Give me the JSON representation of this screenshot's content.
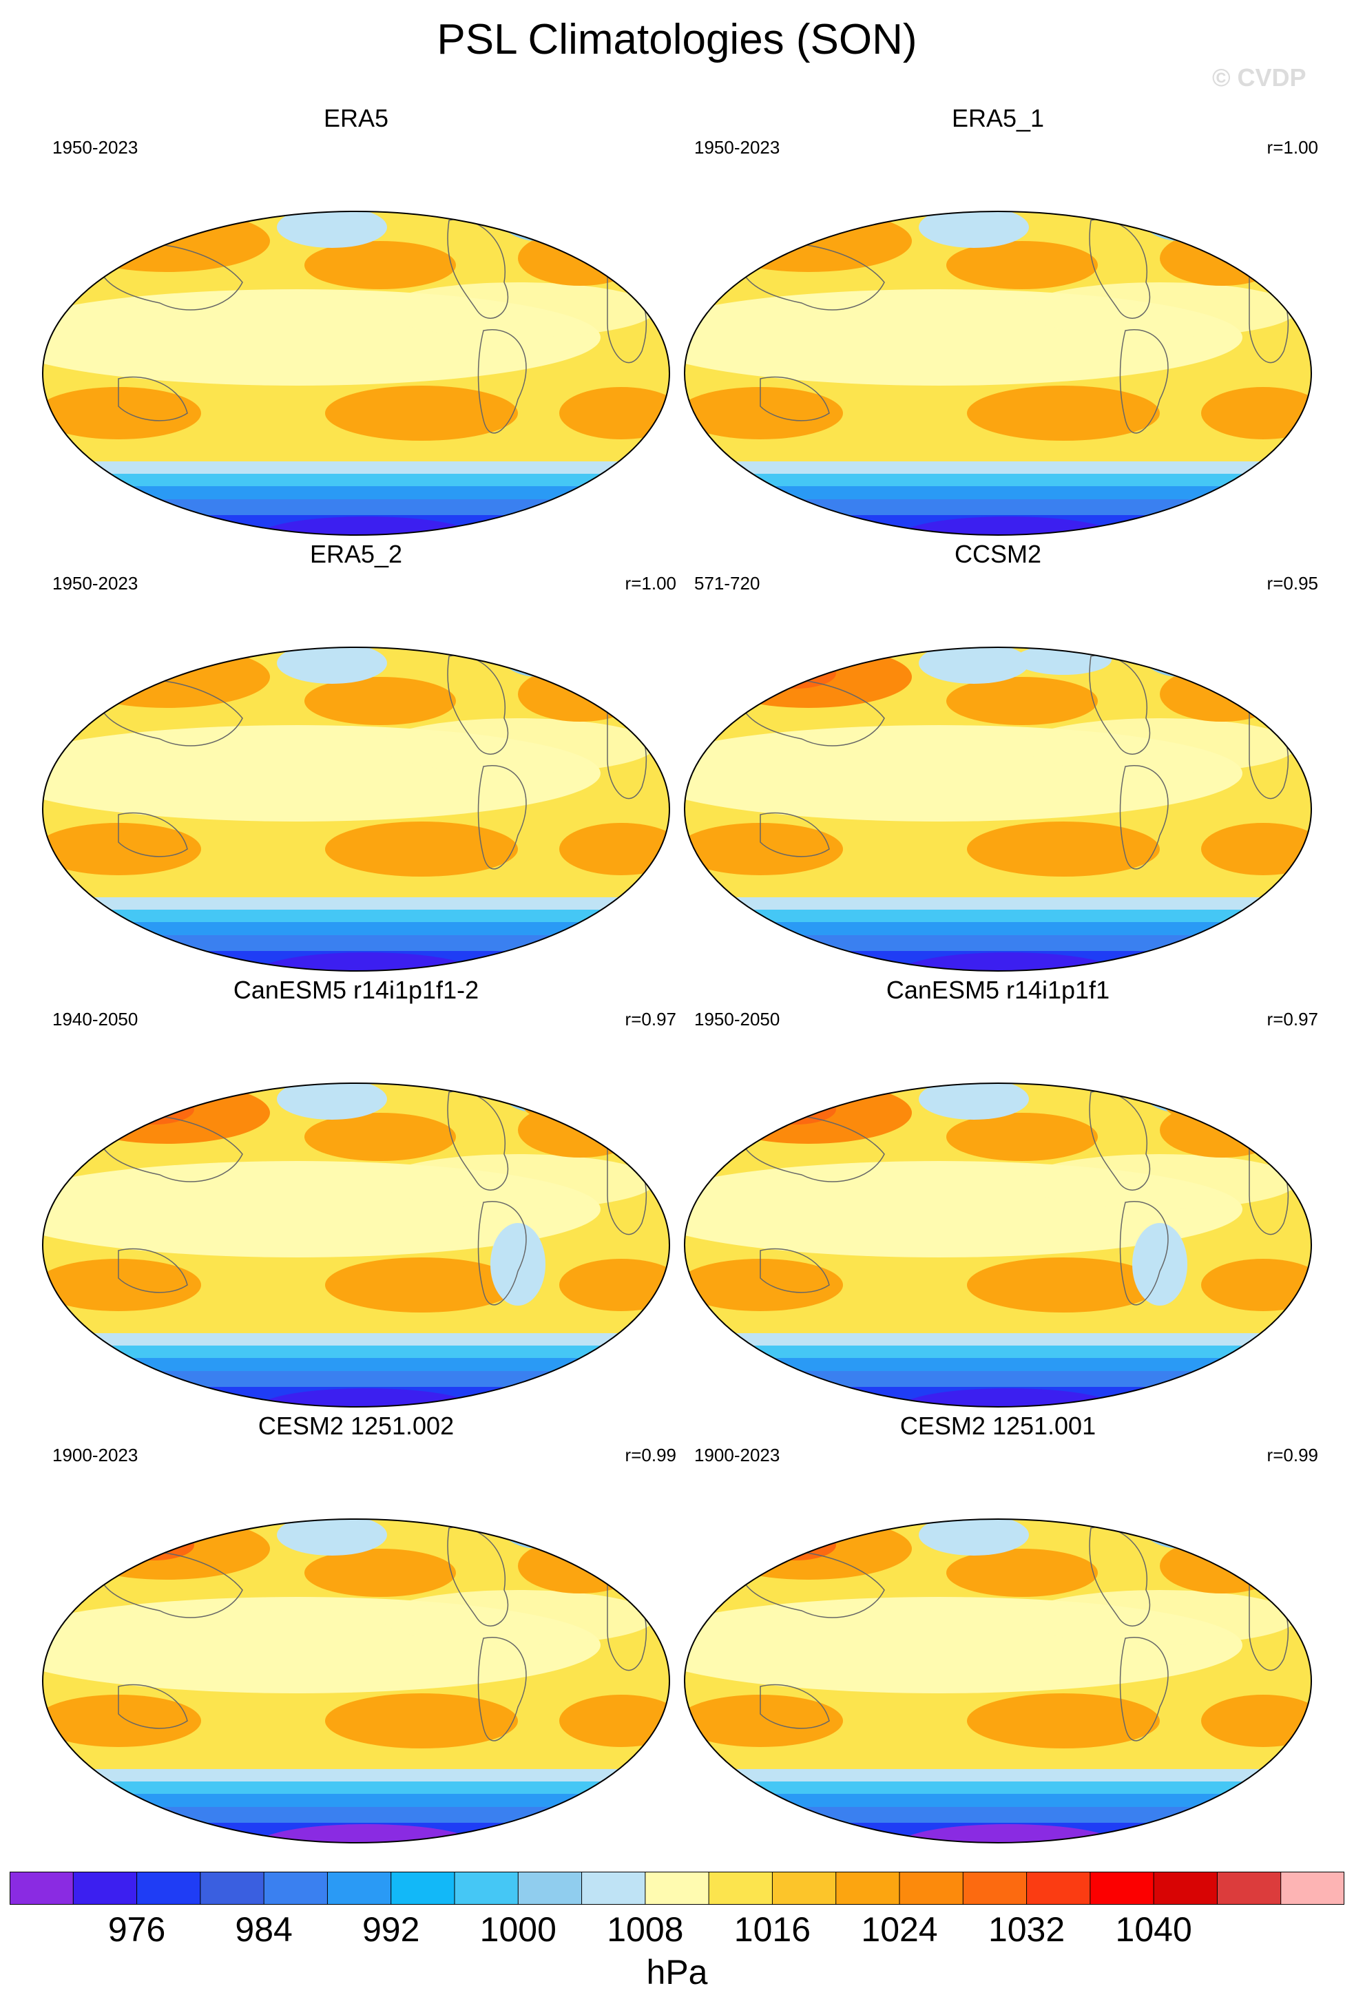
{
  "title": "PSL Climatologies (SON)",
  "watermark": "© CVDP",
  "panels": [
    {
      "title": "ERA5",
      "years": "1950-2023",
      "r": "",
      "variant": "era5"
    },
    {
      "title": "ERA5_1",
      "years": "1950-2023",
      "r": "r=1.00",
      "variant": "era5"
    },
    {
      "title": "ERA5_2",
      "years": "1950-2023",
      "r": "r=1.00",
      "variant": "era5"
    },
    {
      "title": "CCSM2",
      "years": "571-720",
      "r": "r=0.95",
      "variant": "ccsm2"
    },
    {
      "title": "CanESM5 r14i1p1f1-2",
      "years": "1940-2050",
      "r": "r=0.97",
      "variant": "canesm"
    },
    {
      "title": "CanESM5 r14i1p1f1",
      "years": "1950-2050",
      "r": "r=0.97",
      "variant": "canesm"
    },
    {
      "title": "CESM2 1251.002",
      "years": "1900-2023",
      "r": "r=0.99",
      "variant": "cesm"
    },
    {
      "title": "CESM2 1251.001",
      "years": "1900-2023",
      "r": "r=0.99",
      "variant": "cesm"
    }
  ],
  "colorbar": {
    "colors": [
      "#8a2be2",
      "#3c1ff0",
      "#1f3df5",
      "#3a5fe0",
      "#3a80f0",
      "#2a9af5",
      "#12b8f8",
      "#45c7f5",
      "#90cdee",
      "#bfe3f5",
      "#fffbb0",
      "#fce44e",
      "#fcc52a",
      "#fca510",
      "#fc8a0c",
      "#fc6a10",
      "#fb3c12",
      "#fc0000",
      "#d80404",
      "#dc3c3c",
      "#fdb4b4"
    ],
    "labels": [
      "976",
      "984",
      "992",
      "1000",
      "1008",
      "1016",
      "1024",
      "1032",
      "1040"
    ],
    "label_boundary_index": [
      2,
      4,
      6,
      8,
      10,
      12,
      14,
      16,
      18
    ],
    "units": "hPa"
  },
  "colors": {
    "ocean_base": "#fce44e",
    "light_yellow": "#fffbb0",
    "orange": "#fca510",
    "orange_dark": "#fc8a0c",
    "red_orange": "#fc6a10",
    "light_blue": "#bfe3f5",
    "sky_blue": "#90cdee",
    "blue": "#3a80f0",
    "deep_blue": "#1f3df5",
    "violet": "#8a2be2",
    "coast": "#666666"
  }
}
